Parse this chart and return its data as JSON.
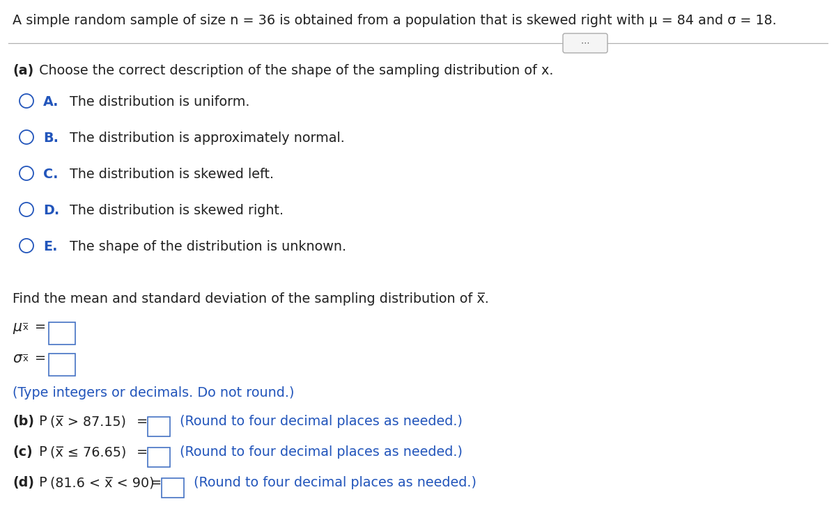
{
  "bg_color": "#ffffff",
  "text_color": "#000000",
  "blue_color": "#2255bb",
  "dark_color": "#222222",
  "sep_color": "#aaaaaa",
  "title": "A simple random sample of size n = 36 is obtained from a population that is skewed right with μ = 84 and σ = 18.",
  "part_a_header_bold": "(a)",
  "part_a_header_rest": " Choose the correct description of the shape of the sampling distribution of x.",
  "options": [
    [
      "A.",
      "The distribution is uniform."
    ],
    [
      "B.",
      "The distribution is approximately normal."
    ],
    [
      "C.",
      "The distribution is skewed left."
    ],
    [
      "D.",
      "The distribution is skewed right."
    ],
    [
      "E.",
      "The shape of the distribution is unknown."
    ]
  ],
  "find_text1": "Find the mean and standard deviation of the sampling distribution of ",
  "find_text2": "x",
  "type_note": "(Type integers or decimals. Do not round.)",
  "box_color": "#4472c4",
  "title_fs": 13.8,
  "body_fs": 13.8,
  "bold_fs": 13.8,
  "small_fs": 9.5
}
